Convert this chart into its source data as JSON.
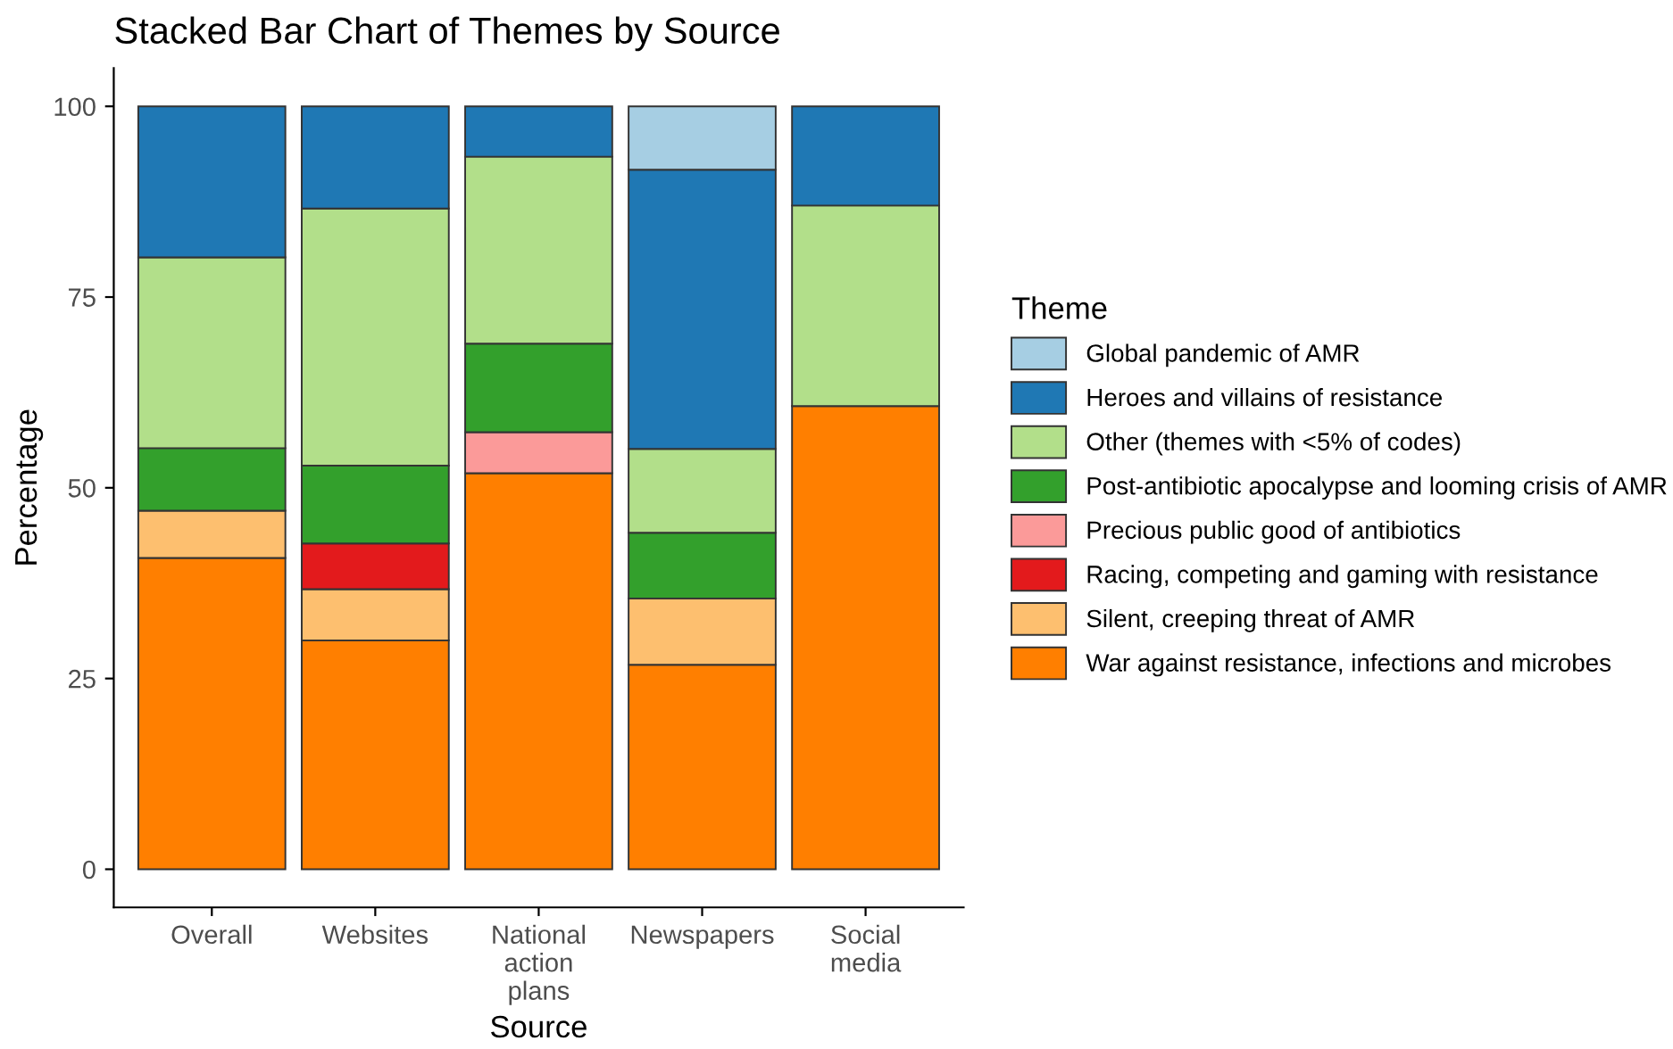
{
  "chart_data": {
    "type": "bar",
    "title": "Stacked Bar Chart of Themes by Source",
    "xlabel": "Source",
    "ylabel": "Percentage",
    "legend_title": "Theme",
    "categories": [
      "Overall",
      "Websites",
      "National\naction\nplans",
      "Newspapers",
      "Social\nmedia"
    ],
    "stacked": true,
    "legend": "right",
    "grid": false,
    "ylim": [
      -5,
      105
    ],
    "yticks": [
      0,
      25,
      50,
      75,
      100
    ],
    "series": [
      {
        "name": "War against resistance, infections and microbes",
        "color": "#ff7f00",
        "values": [
          40.8,
          30.0,
          51.9,
          26.8,
          60.7
        ]
      },
      {
        "name": "Silent, creeping threat of AMR",
        "color": "#fdbf6f",
        "values": [
          6.2,
          6.7,
          null,
          8.7,
          null
        ]
      },
      {
        "name": "Racing, competing and gaming with resistance",
        "color": "#e31a1c",
        "values": [
          null,
          6.0,
          null,
          null,
          null
        ]
      },
      {
        "name": "Precious public good of antibiotics",
        "color": "#fb9a99",
        "values": [
          null,
          null,
          5.4,
          null,
          null
        ]
      },
      {
        "name": "Post-antibiotic apocalypse and looming crisis of AMR",
        "color": "#33a02c",
        "values": [
          8.2,
          10.2,
          11.6,
          8.6,
          null
        ]
      },
      {
        "name": "Other (themes with <5% of codes)",
        "color": "#b2df8a",
        "values": [
          25.0,
          33.7,
          24.5,
          11.0,
          26.3
        ]
      },
      {
        "name": "Heroes and villains of resistance",
        "color": "#1f78b4",
        "values": [
          19.8,
          13.4,
          6.6,
          36.6,
          13.0
        ]
      },
      {
        "name": "Global pandemic of AMR",
        "color": "#a6cee3",
        "values": [
          null,
          null,
          null,
          8.3,
          null
        ]
      }
    ]
  }
}
